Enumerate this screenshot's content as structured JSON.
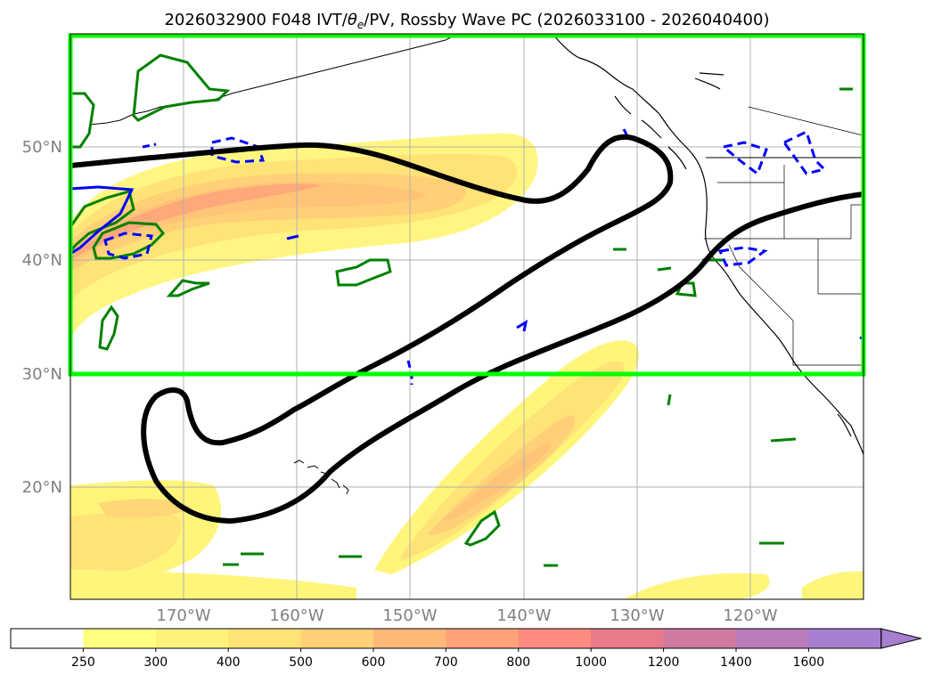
{
  "title": {
    "prefix": "2026032900 F048 IVT/",
    "theta": "θ",
    "theta_sub": "e",
    "suffix": "/PV, Rossby Wave PC (2026033100 - 2026040400)"
  },
  "map": {
    "lon_range": [
      -180,
      -110
    ],
    "lat_range": [
      10,
      60
    ],
    "lat_ticks": [
      {
        "value": 50,
        "label": "50°N"
      },
      {
        "value": 40,
        "label": "40°N"
      },
      {
        "value": 30,
        "label": "30°N"
      },
      {
        "value": 20,
        "label": "20°N"
      }
    ],
    "lon_ticks": [
      {
        "value": -170,
        "label": "170°W"
      },
      {
        "value": -160,
        "label": "160°W"
      },
      {
        "value": -150,
        "label": "150°W"
      },
      {
        "value": -140,
        "label": "140°W"
      },
      {
        "value": -130,
        "label": "130°W"
      },
      {
        "value": -120,
        "label": "120°W"
      }
    ],
    "gridlines": true,
    "highlight_box": {
      "lon": [
        -180,
        -110
      ],
      "lat": [
        30,
        60
      ],
      "color": "#00ff00"
    },
    "colors": {
      "ivt_light": "#fff57a",
      "ivt_mid": "#ffe377",
      "ivt_orange": "#ffc477",
      "ivt_salmon": "#ffa37a",
      "pv_green": "#008000",
      "theta_blue": "#0000ff",
      "rossby_black": "#000000",
      "coast": "#000000",
      "grid": "#b0b0b0"
    }
  },
  "colorbar": {
    "levels": [
      "250",
      "300",
      "400",
      "500",
      "600",
      "700",
      "800",
      "1000",
      "1200",
      "1400",
      "1600"
    ],
    "colors": [
      "#ffffff",
      "#ffff80",
      "#fff27a",
      "#ffe377",
      "#ffd077",
      "#ffb878",
      "#ffa27a",
      "#ff8a7f",
      "#e87a8c",
      "#d07aa0",
      "#bb7cbb",
      "#a77fd0"
    ],
    "extend": "max"
  }
}
